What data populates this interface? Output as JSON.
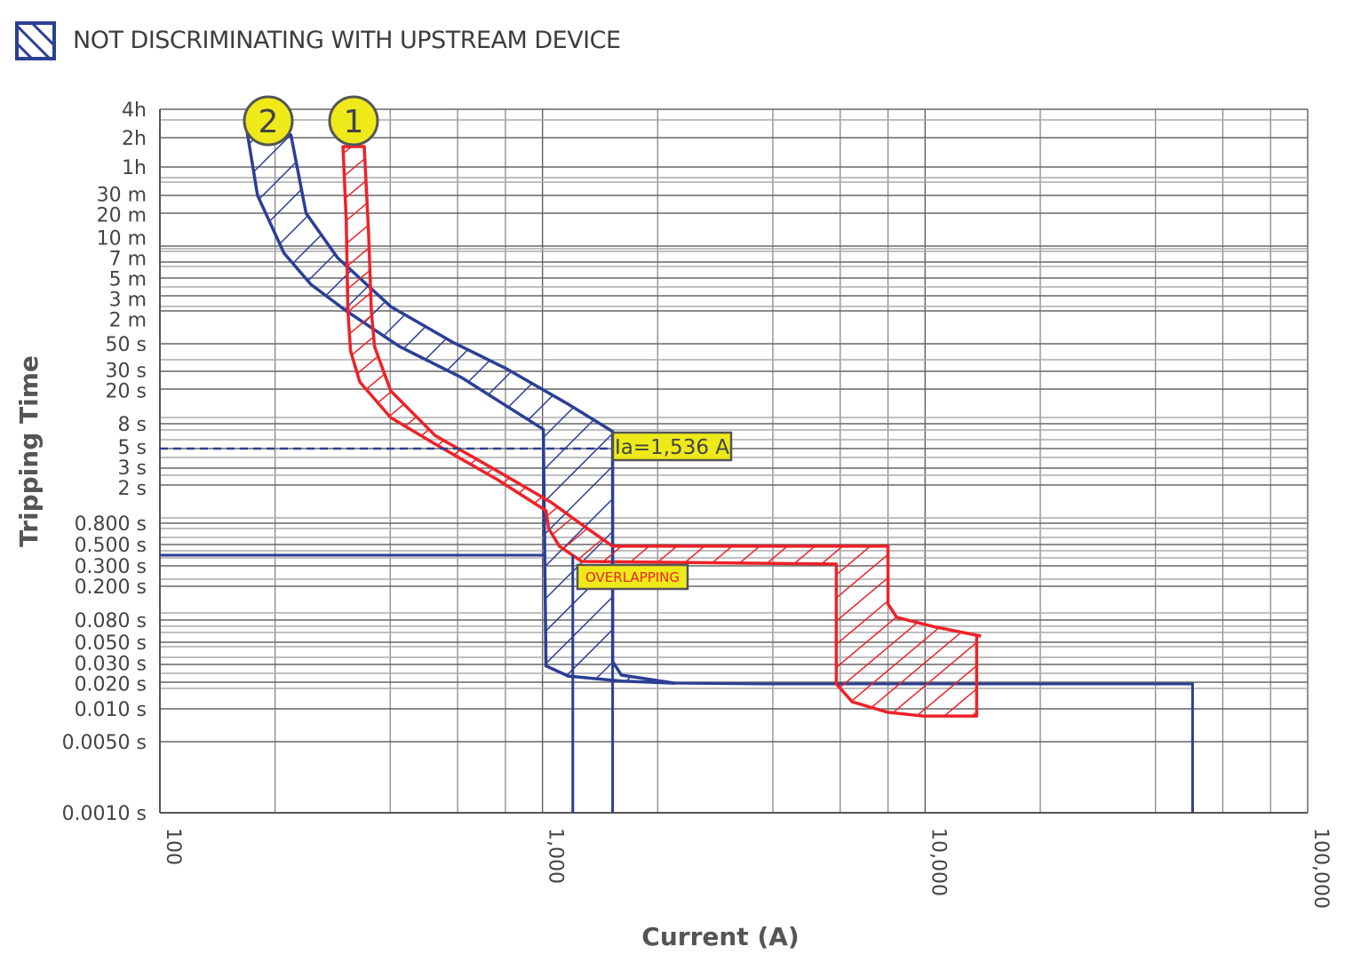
{
  "legend": {
    "label": "NOT DISCRIMINATING WITH UPSTREAM DEVICE",
    "swatch_color": "#2b3f94"
  },
  "chart_data": {
    "type": "line",
    "title": "",
    "xlabel": "Current (A)",
    "ylabel": "Tripping Time",
    "x_scale": "log",
    "xlim": [
      100,
      100000
    ],
    "x_ticks": [
      {
        "value": 100,
        "label": "100"
      },
      {
        "value": 1000,
        "label": "1,000"
      },
      {
        "value": 10000,
        "label": "10,000"
      },
      {
        "value": 100000,
        "label": "100,000"
      }
    ],
    "y_scale": "log",
    "ylim": [
      0.001,
      14400
    ],
    "y_ticks": [
      {
        "value": 14400,
        "label": "4h"
      },
      {
        "value": 7200,
        "label": "2h"
      },
      {
        "value": 3600,
        "label": "1h"
      },
      {
        "value": 1800,
        "label": "30 m"
      },
      {
        "value": 1200,
        "label": "20 m"
      },
      {
        "value": 600,
        "label": "10 m"
      },
      {
        "value": 420,
        "label": "7 m"
      },
      {
        "value": 300,
        "label": "5 m"
      },
      {
        "value": 180,
        "label": "3 m"
      },
      {
        "value": 120,
        "label": "2 m"
      },
      {
        "value": 50,
        "label": "50 s"
      },
      {
        "value": 30,
        "label": "30 s"
      },
      {
        "value": 20,
        "label": "20 s"
      },
      {
        "value": 8,
        "label": "8 s"
      },
      {
        "value": 5,
        "label": "5 s"
      },
      {
        "value": 3,
        "label": "3 s"
      },
      {
        "value": 2,
        "label": "2 s"
      },
      {
        "value": 0.8,
        "label": "0.800 s"
      },
      {
        "value": 0.5,
        "label": "0.500 s"
      },
      {
        "value": 0.3,
        "label": "0.300 s"
      },
      {
        "value": 0.2,
        "label": "0.200 s"
      },
      {
        "value": 0.08,
        "label": "0.080 s"
      },
      {
        "value": 0.05,
        "label": "0.050 s"
      },
      {
        "value": 0.03,
        "label": "0.030 s"
      },
      {
        "value": 0.02,
        "label": "0.020 s"
      },
      {
        "value": 0.01,
        "label": "0.010 s"
      },
      {
        "value": 0.005,
        "label": "0.0050 s"
      },
      {
        "value": 0.001,
        "label": "0.0010 s"
      }
    ],
    "grid": true,
    "series": [
      {
        "marker_label": "2",
        "color": "#2b3f94",
        "band": [
          [
            169,
            8380
          ],
          [
            180,
            1800
          ],
          [
            211,
            512
          ],
          [
            248,
            250
          ],
          [
            307,
            120
          ],
          [
            423,
            47.5
          ],
          [
            615,
            26
          ],
          [
            1005,
            7.2
          ],
          [
            1021,
            0.029
          ],
          [
            1167,
            0.023
          ],
          [
            1608,
            0.0205
          ],
          [
            2217,
            0.0195
          ],
          [
            1608,
            0.0235
          ],
          [
            1525,
            0.032
          ],
          [
            1525,
            6.9
          ],
          [
            1167,
            13.4
          ],
          [
            804,
            31.5
          ],
          [
            583,
            52
          ],
          [
            401,
            135
          ],
          [
            291,
            464
          ],
          [
            241,
            1200
          ],
          [
            220,
            7700
          ]
        ],
        "tail": [
          [
            2217,
            0.0195
          ],
          [
            3782,
            0.0191
          ],
          [
            50000,
            0.0191
          ],
          [
            50000,
            0.001
          ]
        ]
      },
      {
        "marker_label": "1",
        "color": "#ee2229",
        "band": [
          [
            301,
            5830
          ],
          [
            307,
            995
          ],
          [
            310,
            120
          ],
          [
            315,
            43.9
          ],
          [
            333,
            23.5
          ],
          [
            401,
            9.4
          ],
          [
            524,
            5.45
          ],
          [
            762,
            2.28
          ],
          [
            1021,
            1.08
          ],
          [
            1038,
            0.71
          ],
          [
            1107,
            0.48
          ],
          [
            1265,
            0.334
          ],
          [
            5860,
            0.313
          ],
          [
            5860,
            0.0191
          ],
          [
            6450,
            0.012
          ],
          [
            7990,
            0.0093
          ],
          [
            9890,
            0.0086
          ],
          [
            13640,
            0.0086
          ],
          [
            13640,
            0.058
          ],
          [
            10440,
            0.07
          ],
          [
            8430,
            0.086
          ],
          [
            8000,
            0.124
          ],
          [
            8000,
            0.48
          ],
          [
            1525,
            0.48
          ],
          [
            1265,
            0.78
          ],
          [
            1050,
            1.33
          ],
          [
            762,
            2.8
          ],
          [
            524,
            6.4
          ],
          [
            401,
            19.1
          ],
          [
            364,
            47.5
          ],
          [
            357,
            120
          ],
          [
            351,
            826
          ],
          [
            342,
            5830
          ]
        ],
        "tail_end": [
          [
            13640,
            0.058
          ],
          [
            14000,
            0.057
          ]
        ]
      }
    ],
    "reference_lines": [
      {
        "type": "dashed-horizontal",
        "time": 5,
        "from": 100,
        "to": 1525,
        "color": "#2b3f94"
      },
      {
        "type": "horizontal",
        "time": 0.387,
        "from": 100,
        "to": 1021,
        "color": "#2b3f94"
      },
      {
        "type": "vertical",
        "current": 1200,
        "from": 0.387,
        "to": 0.001,
        "color": "#2b3f94"
      },
      {
        "type": "vertical",
        "current": 1525,
        "from": 0.387,
        "to": 0.001,
        "color": "#2b3f94"
      }
    ],
    "annotations": [
      {
        "text": "Ia=1,536 A",
        "current": 1536,
        "time": 5,
        "bg": "#eeea1a",
        "text_color": "#444"
      },
      {
        "text": "OVERLAPPING",
        "current": 1300,
        "time": 0.22,
        "bg": "#eeea1a",
        "text_color": "#ee2229"
      }
    ]
  }
}
